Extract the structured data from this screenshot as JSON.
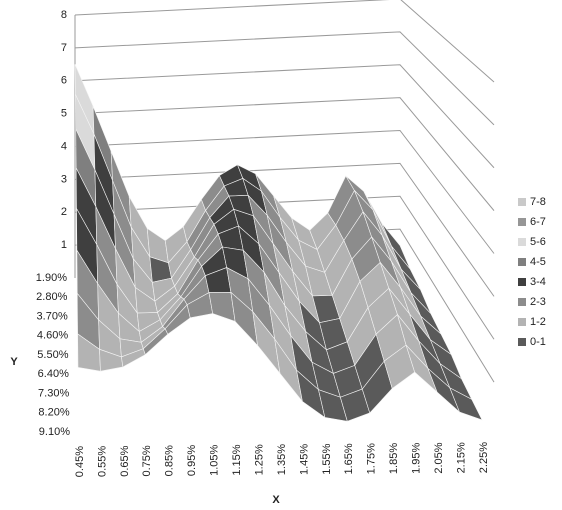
{
  "chart_data": {
    "type": "surface",
    "categories": [
      "0.45%",
      "0.55%",
      "0.65%",
      "0.75%",
      "0.85%",
      "0.95%",
      "1.05%",
      "1.15%",
      "1.25%",
      "1.35%",
      "1.45%",
      "1.55%",
      "1.65%",
      "1.75%",
      "1.85%",
      "1.95%",
      "2.05%",
      "2.15%",
      "2.25%"
    ],
    "series": [
      {
        "name": "1.90%",
        "values": [
          6.5,
          5.2,
          3.8,
          2.4,
          1.4,
          1.0,
          1.4,
          2.2,
          2.9,
          3.2,
          2.9,
          2.2,
          1.5,
          1.1,
          1.6,
          2.7,
          2.2,
          1.2,
          0.5
        ]
      },
      {
        "name": "2.80%",
        "values": [
          6.0,
          4.8,
          3.4,
          2.0,
          1.1,
          0.9,
          1.5,
          2.4,
          3.1,
          3.3,
          2.9,
          2.1,
          1.4,
          1.1,
          1.8,
          2.8,
          2.2,
          1.1,
          0.4
        ]
      },
      {
        "name": "3.70%",
        "values": [
          5.4,
          4.2,
          2.9,
          1.6,
          0.9,
          1.0,
          1.8,
          2.7,
          3.3,
          3.3,
          2.7,
          1.9,
          1.2,
          1.0,
          1.9,
          2.7,
          2.0,
          1.0,
          0.4
        ]
      },
      {
        "name": "4.60%",
        "values": [
          4.7,
          3.6,
          2.4,
          1.3,
          0.9,
          1.3,
          2.1,
          3.0,
          3.4,
          3.2,
          2.4,
          1.6,
          0.9,
          0.9,
          1.9,
          2.5,
          1.8,
          0.9,
          0.3
        ]
      },
      {
        "name": "5.50%",
        "values": [
          4.0,
          3.0,
          1.9,
          1.1,
          1.1,
          1.6,
          2.5,
          3.2,
          3.4,
          2.9,
          2.1,
          1.3,
          0.7,
          0.8,
          1.8,
          2.3,
          1.6,
          0.8,
          0.3
        ]
      },
      {
        "name": "6.40%",
        "values": [
          3.3,
          2.4,
          1.6,
          1.1,
          1.4,
          2.0,
          2.8,
          3.3,
          3.2,
          2.6,
          1.7,
          1.0,
          0.5,
          0.7,
          1.6,
          2.1,
          1.4,
          0.7,
          0.3
        ]
      },
      {
        "name": "7.30%",
        "values": [
          2.6,
          1.9,
          1.4,
          1.3,
          1.7,
          2.4,
          3.0,
          3.2,
          2.9,
          2.2,
          1.4,
          0.7,
          0.4,
          0.6,
          1.4,
          1.9,
          1.2,
          0.6,
          0.2
        ]
      },
      {
        "name": "8.20%",
        "values": [
          2.0,
          1.6,
          1.4,
          1.6,
          2.1,
          2.7,
          3.0,
          3.0,
          2.5,
          1.8,
          1.0,
          0.5,
          0.3,
          0.5,
          1.2,
          1.6,
          1.0,
          0.5,
          0.2
        ]
      },
      {
        "name": "9.10%",
        "values": [
          1.6,
          1.5,
          1.6,
          1.9,
          2.4,
          2.8,
          2.9,
          2.7,
          2.1,
          1.4,
          0.7,
          0.3,
          0.2,
          0.4,
          1.0,
          1.4,
          0.9,
          0.4,
          0.2
        ]
      }
    ],
    "zlim": [
      0,
      8
    ],
    "zticks": [
      1,
      2,
      3,
      4,
      5,
      6,
      7,
      8
    ],
    "xlabel": "X",
    "ylabel": "Y",
    "bands": [
      {
        "label": "7-8",
        "color": "#c9c9c9"
      },
      {
        "label": "6-7",
        "color": "#969696"
      },
      {
        "label": "5-6",
        "color": "#dadada"
      },
      {
        "label": "4-5",
        "color": "#7f7f7f"
      },
      {
        "label": "3-4",
        "color": "#3f3f3f"
      },
      {
        "label": "2-3",
        "color": "#8c8c8c"
      },
      {
        "label": "1-2",
        "color": "#b3b3b3"
      },
      {
        "label": "0-1",
        "color": "#5a5a5a"
      }
    ]
  }
}
